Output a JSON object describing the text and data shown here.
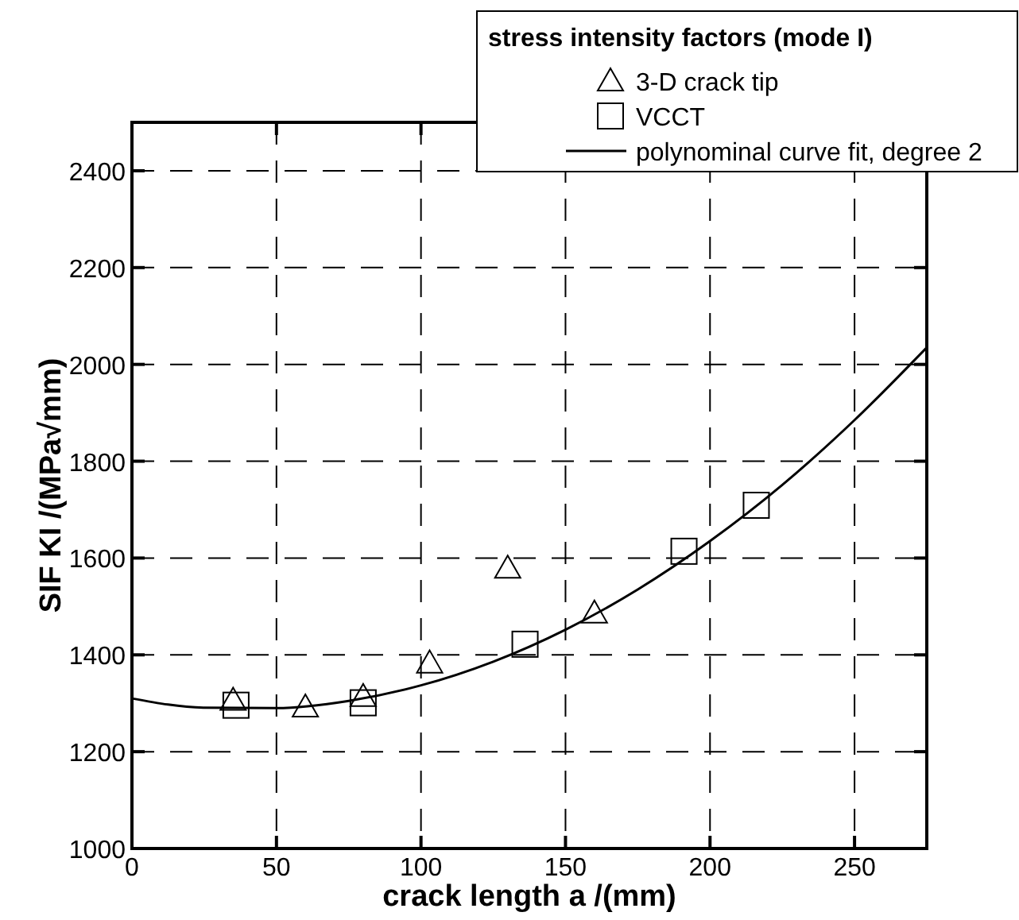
{
  "chart_data": {
    "type": "scatter",
    "xlabel": "crack length a /(mm)",
    "ylabel": "SIF KI /(MPa√mm)",
    "legend_title": "stress intensity factors (mode I)",
    "xlim": [
      0,
      275
    ],
    "xticks": [
      0,
      50,
      100,
      150,
      200,
      250
    ],
    "ylim": [
      1000,
      2500
    ],
    "yticks": [
      1000,
      1200,
      1400,
      1600,
      1800,
      2000,
      2200,
      2400
    ],
    "grid": true,
    "legend": "top right",
    "series": [
      {
        "name": "3-D crack tip",
        "marker": "triangle",
        "color": "#000000",
        "x": [
          35,
          60,
          80,
          103,
          130,
          160
        ],
        "values": [
          1306,
          1292,
          1314,
          1383,
          1579,
          1486
        ]
      },
      {
        "name": "VCCT",
        "marker": "square",
        "color": "#000000",
        "x": [
          36,
          80,
          136,
          191,
          216
        ],
        "values": [
          1296,
          1301,
          1422,
          1614,
          1709
        ]
      },
      {
        "name": "polynominal curve fit, degree 2",
        "type": "line",
        "line_style": "solid",
        "color": "#000000",
        "x": [
          0,
          25,
          50,
          75,
          100,
          125,
          150,
          175,
          200,
          225,
          250,
          275
        ],
        "values": [
          1310,
          1291,
          1290,
          1305,
          1337,
          1386,
          1452,
          1535,
          1635,
          1751,
          1885,
          2035
        ]
      }
    ]
  }
}
